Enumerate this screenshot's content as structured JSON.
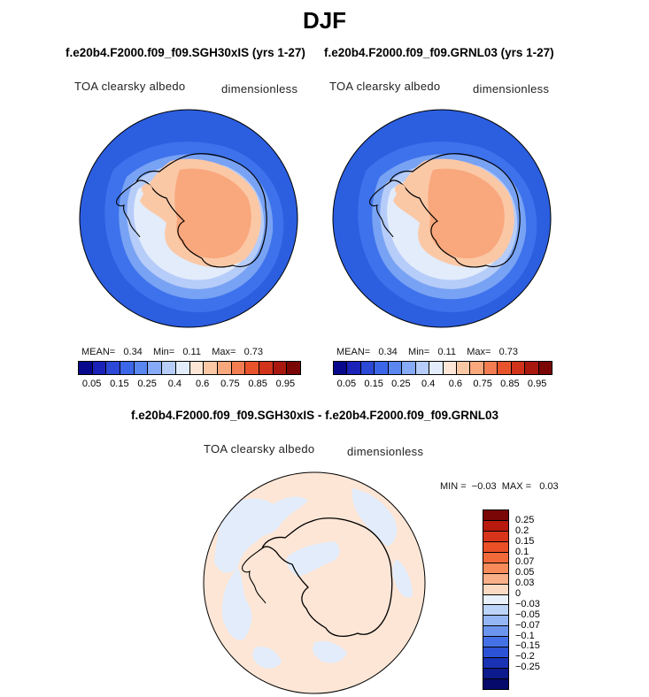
{
  "season": "DJF",
  "panels": [
    {
      "run": "f.e20b4.F2000.f09_f09.SGH30xIS (yrs 1-27)",
      "variable": "TOA clearsky albedo",
      "units": "dimensionless",
      "mean_label": "MEAN=",
      "mean": "0.34",
      "min_label": "Min=",
      "min": "0.11",
      "max_label": "Max=",
      "max": "0.73"
    },
    {
      "run": "f.e20b4.F2000.f09_f09.GRNL03 (yrs 1-27)",
      "variable": "TOA clearsky albedo",
      "units": "dimensionless",
      "mean_label": "MEAN=",
      "mean": "0.34",
      "min_label": "Min=",
      "min": "0.11",
      "max_label": "Max=",
      "max": "0.73"
    }
  ],
  "colorbar": {
    "colors": [
      "#08088c",
      "#1a22b8",
      "#2c48d6",
      "#3c66e8",
      "#5a86f0",
      "#86aaf6",
      "#b6ccf9",
      "#e2ecfb",
      "#fde6d6",
      "#fbc8a6",
      "#f9a77c",
      "#f27d52",
      "#e8532c",
      "#d0321a",
      "#a8180e",
      "#7a0606"
    ],
    "tick_labels": [
      "0.05",
      "0.15",
      "0.25",
      "0.4",
      "0.6",
      "0.75",
      "0.85",
      "0.95"
    ]
  },
  "diff": {
    "title": "f.e20b4.F2000.f09_f09.SGH30xIS - f.e20b4.F2000.f09_f09.GRNL03",
    "variable": "TOA clearsky albedo",
    "units": "dimensionless",
    "min_label": "MIN =",
    "min": "−0.03",
    "max_label": "MAX =",
    "max": "0.03",
    "colorbar_colors": [
      "#7a0606",
      "#b81a0e",
      "#d8341a",
      "#ea4f26",
      "#f26a3a",
      "#f78b5a",
      "#f9b089",
      "#fcd9c2",
      "#e8f1fb",
      "#bcd4f7",
      "#94b6f4",
      "#6c96ee",
      "#4472e6",
      "#2c52d6",
      "#1a32b4",
      "#0c1a8c",
      "#060a6a"
    ],
    "colorbar_labels": [
      "0.25",
      "0.2",
      "0.15",
      "0.1",
      "0.07",
      "0.05",
      "0.03",
      "0",
      "−0.03",
      "−0.05",
      "−0.07",
      "−0.1",
      "−0.15",
      "−0.2",
      "−0.25"
    ]
  }
}
